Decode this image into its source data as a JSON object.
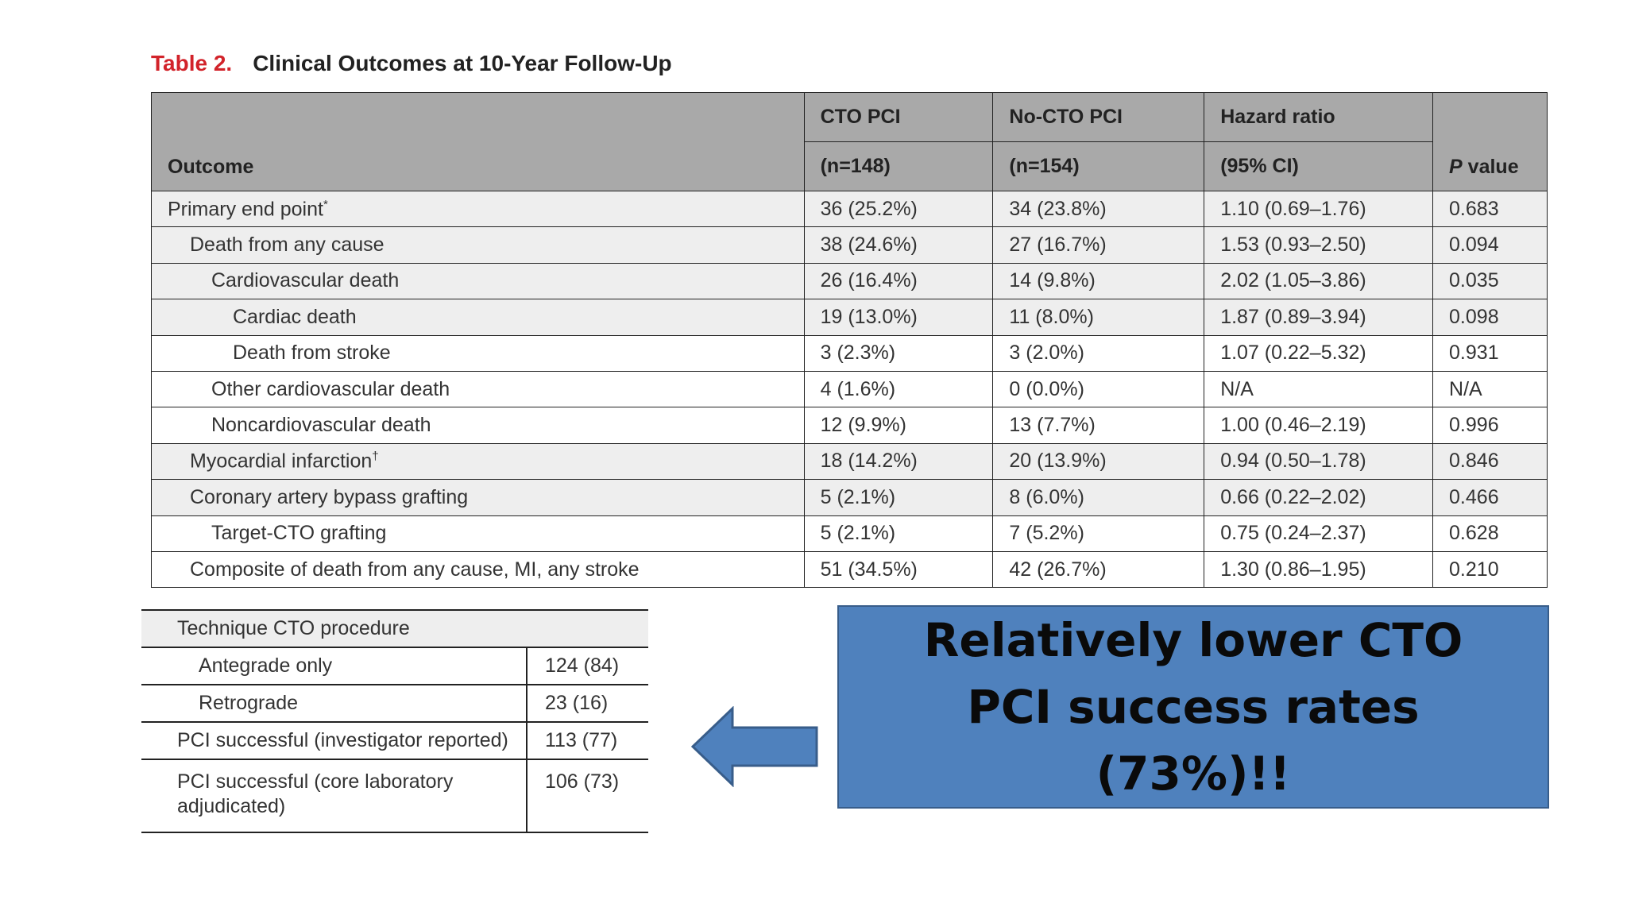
{
  "title": {
    "number": "Table 2.",
    "text": "Clinical Outcomes at 10-Year Follow-Up"
  },
  "main_table": {
    "headers": {
      "outcome": "Outcome",
      "cto_line1": "CTO PCI",
      "cto_line2": "(n=148)",
      "nocto_line1": "No-CTO PCI",
      "nocto_line2": "(n=154)",
      "hr_line1": "Hazard ratio",
      "hr_line2": "(95% CI)",
      "p_italic": "P",
      "p_rest": " value"
    },
    "rows": [
      {
        "label": "Primary end point",
        "mark": "*",
        "cto": "36 (25.2%)",
        "nocto": "34 (23.8%)",
        "hr": "1.10 (0.69–1.76)",
        "p": "0.683"
      },
      {
        "label": "Death from any cause",
        "mark": "",
        "cto": "38 (24.6%)",
        "nocto": "27 (16.7%)",
        "hr": "1.53 (0.93–2.50)",
        "p": "0.094"
      },
      {
        "label": "Cardiovascular death",
        "mark": "",
        "cto": "26 (16.4%)",
        "nocto": "14 (9.8%)",
        "hr": "2.02 (1.05–3.86)",
        "p": "0.035"
      },
      {
        "label": "Cardiac death",
        "mark": "",
        "cto": "19 (13.0%)",
        "nocto": "11 (8.0%)",
        "hr": "1.87 (0.89–3.94)",
        "p": "0.098"
      },
      {
        "label": "Death from stroke",
        "mark": "",
        "cto": "3 (2.3%)",
        "nocto": "3 (2.0%)",
        "hr": "1.07 (0.22–5.32)",
        "p": "0.931"
      },
      {
        "label": "Other cardiovascular death",
        "mark": "",
        "cto": "4 (1.6%)",
        "nocto": "0 (0.0%)",
        "hr": "N/A",
        "p": "N/A"
      },
      {
        "label": "Noncardiovascular death",
        "mark": "",
        "cto": "12 (9.9%)",
        "nocto": "13 (7.7%)",
        "hr": "1.00 (0.46–2.19)",
        "p": "0.996"
      },
      {
        "label": "Myocardial infarction",
        "mark": "†",
        "cto": "18 (14.2%)",
        "nocto": "20 (13.9%)",
        "hr": "0.94 (0.50–1.78)",
        "p": "0.846"
      },
      {
        "label": "Coronary artery bypass grafting",
        "mark": "",
        "cto": "5 (2.1%)",
        "nocto": "8 (6.0%)",
        "hr": "0.66 (0.22–2.02)",
        "p": "0.466"
      },
      {
        "label": "Target-CTO grafting",
        "mark": "",
        "cto": "5 (2.1%)",
        "nocto": "7 (5.2%)",
        "hr": "0.75 (0.24–2.37)",
        "p": "0.628"
      },
      {
        "label": "Composite of death from any cause, MI, any stroke",
        "mark": "",
        "cto": "51 (34.5%)",
        "nocto": "42 (26.7%)",
        "hr": "1.30 (0.86–1.95)",
        "p": "0.210"
      }
    ]
  },
  "technique_table": {
    "header": "Technique CTO procedure",
    "rows": [
      {
        "label": "Antegrade only",
        "value": "124 (84)"
      },
      {
        "label": "Retrograde",
        "value": "23 (16)"
      },
      {
        "label": "PCI successful (investigator reported)",
        "value": "113 (77)"
      },
      {
        "label": "PCI successful (core laboratory adjudicated)",
        "value": "106 (73)"
      }
    ]
  },
  "callout": {
    "text": "Relatively lower CTO PCI success rates (73%)!!"
  },
  "colors": {
    "title_number": "#d2232a",
    "header_bg": "#a9a9a9",
    "row_shade": "#eeeeee",
    "callout_bg": "#4f81bd",
    "arrow": "#4f81bd"
  }
}
